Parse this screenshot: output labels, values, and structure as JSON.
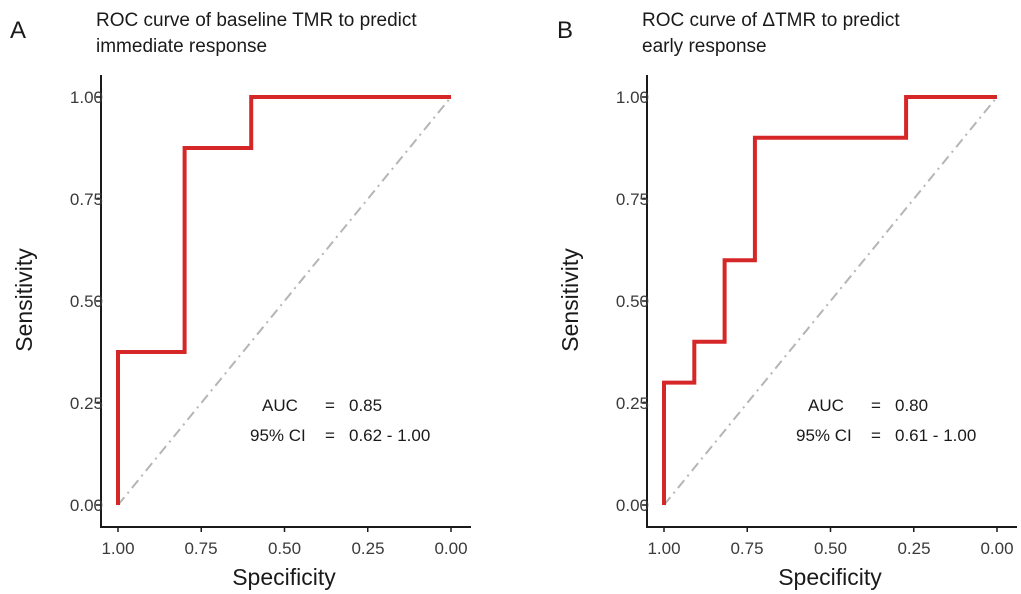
{
  "chart_data": [
    {
      "type": "line",
      "panel_label": "A",
      "title_lines": [
        "ROC curve of baseline TMR to predict",
        "immediate response"
      ],
      "xlabel": "Specificity",
      "ylabel": "Sensitivity",
      "xlim": [
        1.0,
        0.0
      ],
      "ylim": [
        0.0,
        1.0
      ],
      "x_reversed": true,
      "x_ticks": [
        "1.00",
        "0.75",
        "0.50",
        "0.25",
        "0.00"
      ],
      "y_ticks": [
        "0.00",
        "0.25",
        "0.50",
        "0.75",
        "1.00"
      ],
      "line_color": "#d62728",
      "reference_line_color": "#b5b5b5",
      "series": [
        {
          "x": [
            1.0,
            1.0,
            0.8,
            0.8,
            0.6,
            0.6,
            0.0
          ],
          "y": [
            0.0,
            0.375,
            0.375,
            0.875,
            0.875,
            1.0,
            1.0
          ]
        }
      ],
      "annotations": {
        "auc_label": "AUC",
        "auc_eq": "=",
        "auc_value": "0.85",
        "ci_label": "95% CI",
        "ci_eq": "=",
        "ci_value": "0.62 - 1.00"
      }
    },
    {
      "type": "line",
      "panel_label": "B",
      "title_lines": [
        "ROC curve of ΔTMR to predict",
        "early response"
      ],
      "xlabel": "Specificity",
      "ylabel": "Sensitivity",
      "xlim": [
        1.0,
        0.0
      ],
      "ylim": [
        0.0,
        1.0
      ],
      "x_reversed": true,
      "x_ticks": [
        "1.00",
        "0.75",
        "0.50",
        "0.25",
        "0.00"
      ],
      "y_ticks": [
        "0.00",
        "0.25",
        "0.50",
        "0.75",
        "1.00"
      ],
      "line_color": "#d62728",
      "reference_line_color": "#b5b5b5",
      "series": [
        {
          "x": [
            1.0,
            1.0,
            0.909,
            0.909,
            0.818,
            0.818,
            0.727,
            0.727,
            0.273,
            0.273,
            0.0
          ],
          "y": [
            0.0,
            0.3,
            0.3,
            0.4,
            0.4,
            0.6,
            0.6,
            0.9,
            0.9,
            1.0,
            1.0
          ]
        }
      ],
      "annotations": {
        "auc_label": "AUC",
        "auc_eq": "=",
        "auc_value": "0.80",
        "ci_label": "95% CI",
        "ci_eq": "=",
        "ci_value": "0.61 - 1.00"
      }
    }
  ]
}
